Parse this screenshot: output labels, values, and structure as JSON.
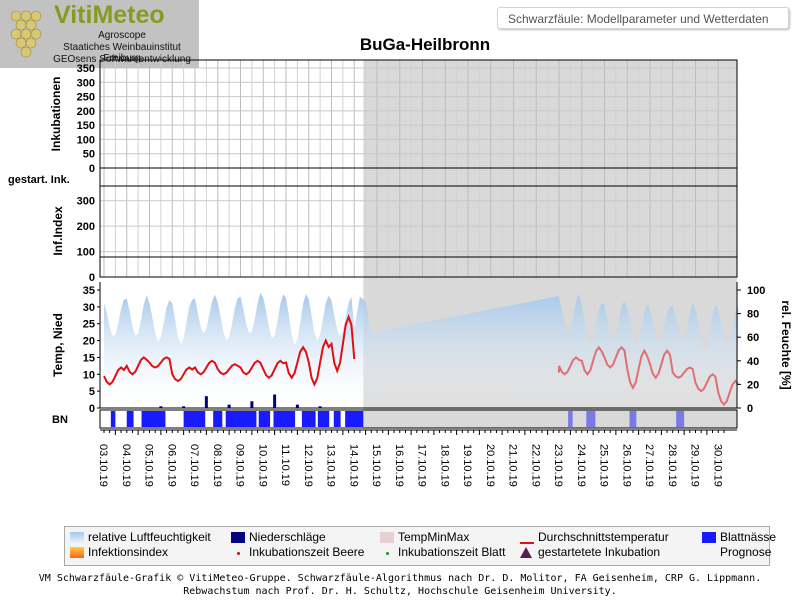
{
  "branding": {
    "title": "VitiMeteo",
    "lines": [
      "Agroscope",
      "Staatiches Weinbauinstitut Freiburg",
      "GEOsens Softwareentwicklung"
    ]
  },
  "header": {
    "text": "Schwarzfäule: Modellparameter und Wetterdaten"
  },
  "chart_title": "BuGa-Heilbronn",
  "footer": {
    "line1": "VM Schwarzfäule-Grafik © VitiMeteo-Gruppe. Schwarzfäule-Algorithmus nach Dr. D. Molitor, FA Geisenheim, CRP G. Lippmann.",
    "line2": "Rebwachstum nach Prof. Dr. H. Schultz, Hochschule Geisenheim University."
  },
  "colors": {
    "humidity": "#a6c8ea",
    "precip": "#000080",
    "temp_line": "#e01010",
    "temp_line_forecast": "#e07070",
    "leaf_wet": "#1a1aff",
    "leaf_wet_forecast": "#7a7ae6",
    "forecast_bg": "#d9d9d9",
    "grid": "#c8c8c8"
  },
  "chart_data": [
    {
      "id": "incubations",
      "type": "line",
      "ylabel": "Inkubationen",
      "ylim": [
        0,
        350
      ],
      "yticks": [
        0,
        50,
        100,
        150,
        200,
        250,
        300,
        350
      ],
      "series": []
    },
    {
      "id": "started_inc",
      "type": "line",
      "ylabel": "gestart. Ink.",
      "series": []
    },
    {
      "id": "infindex",
      "type": "line",
      "ylabel": "Inf.Index",
      "ylim": [
        0,
        350
      ],
      "yticks": [
        0,
        100,
        200,
        300
      ],
      "series": []
    },
    {
      "id": "weather",
      "type": "line",
      "ylabel": "Temp, Nied",
      "ylim": [
        0,
        35
      ],
      "yticks": [
        0,
        5,
        10,
        15,
        20,
        25,
        30,
        35
      ],
      "y2label": "rel. Feuchte [%]",
      "y2lim": [
        0,
        100
      ],
      "y2ticks": [
        0,
        20,
        40,
        60,
        80,
        100
      ],
      "x_dates": [
        "03.10.19",
        "04.10.19",
        "05.10.19",
        "06.10.19",
        "07.10.19",
        "08.10.19",
        "09.10.19",
        "10.10.19",
        "11.10.19",
        "12.10.19",
        "13.10.19",
        "14.10.19",
        "15.10.19",
        "16.10.19",
        "17.10.19",
        "18.10.19",
        "19.10.19",
        "20.10.19",
        "21.10.19",
        "22.10.19",
        "23.10.19",
        "24.10.19",
        "25.10.19",
        "26.10.19",
        "27.10.19",
        "28.10.19",
        "29.10.19",
        "30.10.19"
      ],
      "forecast_start": "14.10.19",
      "forecast_gap_until": "23.10.19",
      "temperature_daily": [
        {
          "day": "03.10.19",
          "min": 7,
          "max": 12
        },
        {
          "day": "04.10.19",
          "min": 10,
          "max": 15
        },
        {
          "day": "05.10.19",
          "min": 12,
          "max": 15
        },
        {
          "day": "06.10.19",
          "min": 8,
          "max": 12
        },
        {
          "day": "07.10.19",
          "min": 10,
          "max": 14
        },
        {
          "day": "08.10.19",
          "min": 10,
          "max": 13
        },
        {
          "day": "09.10.19",
          "min": 10,
          "max": 14
        },
        {
          "day": "10.10.19",
          "min": 9,
          "max": 14
        },
        {
          "day": "11.10.19",
          "min": 9,
          "max": 18
        },
        {
          "day": "12.10.19",
          "min": 7,
          "max": 20
        },
        {
          "day": "13.10.19",
          "min": 11,
          "max": 27
        },
        {
          "day": "14.10.19",
          "min": 10,
          "max": 15
        },
        {
          "day": "23.10.19",
          "min": 10,
          "max": 15
        },
        {
          "day": "24.10.19",
          "min": 10,
          "max": 18
        },
        {
          "day": "25.10.19",
          "min": 12,
          "max": 18
        },
        {
          "day": "26.10.19",
          "min": 6,
          "max": 17
        },
        {
          "day": "27.10.19",
          "min": 9,
          "max": 17
        },
        {
          "day": "28.10.19",
          "min": 9,
          "max": 12
        },
        {
          "day": "29.10.19",
          "min": 5,
          "max": 10
        },
        {
          "day": "30.10.19",
          "min": 1,
          "max": 8
        }
      ],
      "humidity_daily": [
        {
          "day": "03.10.19",
          "min": 60,
          "max": 92
        },
        {
          "day": "04.10.19",
          "min": 62,
          "max": 94
        },
        {
          "day": "05.10.19",
          "min": 58,
          "max": 90
        },
        {
          "day": "06.10.19",
          "min": 55,
          "max": 92
        },
        {
          "day": "07.10.19",
          "min": 62,
          "max": 98
        },
        {
          "day": "08.10.19",
          "min": 55,
          "max": 95
        },
        {
          "day": "09.10.19",
          "min": 62,
          "max": 98
        },
        {
          "day": "10.10.19",
          "min": 60,
          "max": 95
        },
        {
          "day": "11.10.19",
          "min": 55,
          "max": 95
        },
        {
          "day": "12.10.19",
          "min": 58,
          "max": 95
        },
        {
          "day": "13.10.19",
          "min": 60,
          "max": 96
        },
        {
          "day": "14.10.19",
          "min": 60,
          "max": 98
        },
        {
          "day": "23.10.19",
          "min": 65,
          "max": 95
        },
        {
          "day": "24.10.19",
          "min": 55,
          "max": 88
        },
        {
          "day": "25.10.19",
          "min": 58,
          "max": 92
        },
        {
          "day": "26.10.19",
          "min": 52,
          "max": 90
        },
        {
          "day": "27.10.19",
          "min": 55,
          "max": 88
        },
        {
          "day": "28.10.19",
          "min": 58,
          "max": 88
        },
        {
          "day": "29.10.19",
          "min": 50,
          "max": 85
        },
        {
          "day": "30.10.19",
          "min": 55,
          "max": 85
        }
      ],
      "precipitation_events": [
        {
          "day": "05.10.19",
          "value": 0.5
        },
        {
          "day": "06.10.19",
          "value": 0.5
        },
        {
          "day": "07.10.19",
          "value": 3.5
        },
        {
          "day": "08.10.19",
          "value": 1.0
        },
        {
          "day": "09.10.19",
          "value": 2.0
        },
        {
          "day": "10.10.19",
          "value": 4.0
        },
        {
          "day": "11.10.19",
          "value": 1.0
        },
        {
          "day": "12.10.19",
          "value": 0.5
        }
      ]
    },
    {
      "id": "leaf_wetness",
      "type": "bar",
      "ylabel": "BN",
      "wet_periods": [
        {
          "start": "03.10.19",
          "end": "03.10.19"
        },
        {
          "start": "04.10.19",
          "end": "04.10.19"
        },
        {
          "start": "04.10.19",
          "end": "05.10.19"
        },
        {
          "start": "05.10.19",
          "end": "06.10.19"
        },
        {
          "start": "07.10.19",
          "end": "08.10.19"
        },
        {
          "start": "08.10.19",
          "end": "09.10.19"
        },
        {
          "start": "09.10.19",
          "end": "10.10.19"
        },
        {
          "start": "10.10.19",
          "end": "11.10.19"
        },
        {
          "start": "11.10.19",
          "end": "12.10.19"
        },
        {
          "start": "12.10.19",
          "end": "13.10.19"
        },
        {
          "start": "13.10.19",
          "end": "14.10.19"
        },
        {
          "start": "23.10.19",
          "end": "23.10.19"
        },
        {
          "start": "24.10.19",
          "end": "24.10.19"
        },
        {
          "start": "26.10.19",
          "end": "26.10.19"
        },
        {
          "start": "28.10.19",
          "end": "28.10.19"
        }
      ]
    }
  ],
  "legend": [
    {
      "label": "relative Luftfeuchtigkeit",
      "swatch": "humidity"
    },
    {
      "label": "Niederschläge",
      "swatch": "precip"
    },
    {
      "label": "TempMinMax",
      "swatch": "tempminmax"
    },
    {
      "label": "Durchschnittstemperatur",
      "swatch": "temp_line"
    },
    {
      "label": "Blattnässe",
      "swatch": "leaf_wet"
    },
    {
      "label": "Infektionsindex",
      "swatch": "infindex"
    },
    {
      "label": "Inkubationszeit Beere",
      "swatch": "dot_red"
    },
    {
      "label": "Inkubationszeit Blatt",
      "swatch": "dot_green"
    },
    {
      "label": "gestartetete Inkubation",
      "swatch": "triangle"
    },
    {
      "label": "Prognose",
      "swatch": "none"
    }
  ]
}
